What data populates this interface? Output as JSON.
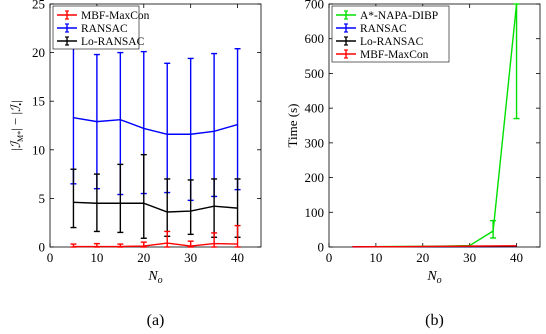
{
  "chart_data": [
    {
      "type": "line",
      "panel_label": "(a)",
      "xlabel": "N_o",
      "ylabel": "|ℐ_M*| − |ℐ_•|",
      "xlim": [
        0,
        45
      ],
      "ylim": [
        0,
        25
      ],
      "xticks": [
        0,
        10,
        20,
        30,
        40
      ],
      "yticks": [
        0,
        5,
        10,
        15,
        20,
        25
      ],
      "grid": false,
      "legend_position": "top-left",
      "x": [
        5,
        10,
        15,
        20,
        25,
        30,
        35,
        40
      ],
      "series": [
        {
          "name": "MBF-MaxCon",
          "color": "#ff0000",
          "values": [
            0.05,
            0.05,
            0.05,
            0.1,
            0.4,
            0.1,
            0.35,
            0.3
          ],
          "err_low": [
            0.05,
            0.05,
            0.05,
            0.1,
            0.4,
            0.1,
            0.35,
            0.3
          ],
          "err_high": [
            0.25,
            0.3,
            0.25,
            0.4,
            1.2,
            0.5,
            1.1,
            1.9
          ]
        },
        {
          "name": "RANSAC",
          "color": "#0000ff",
          "values": [
            13.3,
            12.9,
            13.1,
            12.2,
            11.6,
            11.6,
            11.9,
            12.6
          ],
          "err_low": [
            6.8,
            6.9,
            7.7,
            6.7,
            6.0,
            6.8,
            6.7,
            6.7
          ],
          "err_high": [
            7.2,
            6.9,
            6.9,
            7.9,
            7.3,
            7.8,
            8.0,
            7.8
          ]
        },
        {
          "name": "Lo-RANSAC",
          "color": "#000000",
          "values": [
            4.6,
            4.5,
            4.5,
            4.5,
            3.6,
            3.7,
            4.2,
            4.0
          ],
          "err_low": [
            2.6,
            2.9,
            3.0,
            3.6,
            2.5,
            2.4,
            3.2,
            3.0
          ],
          "err_high": [
            3.4,
            3.0,
            4.0,
            5.0,
            3.4,
            3.2,
            2.8,
            3.0
          ]
        }
      ]
    },
    {
      "type": "line",
      "panel_label": "(b)",
      "xlabel": "N_o",
      "ylabel": "Time (s)",
      "xlim": [
        0,
        45
      ],
      "ylim": [
        0,
        700
      ],
      "xticks": [
        0,
        10,
        20,
        30,
        40
      ],
      "yticks": [
        0,
        100,
        200,
        300,
        400,
        500,
        600,
        700
      ],
      "grid": false,
      "legend_position": "top-left",
      "x": [
        5,
        10,
        15,
        20,
        25,
        30,
        35,
        40
      ],
      "series": [
        {
          "name": "A*-NAPA-DIBP",
          "color": "#00e000",
          "values": [
            0.5,
            1,
            1.5,
            2,
            2.5,
            4,
            46,
            700
          ],
          "err_low": [
            0,
            0,
            0,
            0,
            0,
            0,
            20,
            330
          ],
          "err_high": [
            0,
            0,
            0,
            0,
            0,
            0,
            30,
            0
          ]
        },
        {
          "name": "RANSAC",
          "color": "#0000ff",
          "values": [
            0.3,
            0.4,
            0.5,
            0.6,
            0.8,
            1,
            1.3,
            1.6
          ],
          "err_low": [
            0,
            0,
            0,
            0,
            0,
            0,
            0,
            0
          ],
          "err_high": [
            0,
            0,
            0,
            0,
            0,
            0,
            0,
            0
          ]
        },
        {
          "name": "Lo-RANSAC",
          "color": "#000000",
          "values": [
            0.4,
            0.5,
            0.7,
            0.9,
            1.1,
            1.4,
            1.8,
            2.2
          ],
          "err_low": [
            0,
            0,
            0,
            0,
            0,
            0,
            0,
            0
          ],
          "err_high": [
            0,
            0,
            0,
            0,
            0,
            0,
            0,
            0
          ]
        },
        {
          "name": "MBF-MaxCon",
          "color": "#ff0000",
          "values": [
            0.5,
            0.8,
            1,
            1.5,
            2,
            2.5,
            3,
            3.5
          ],
          "err_low": [
            0,
            0,
            0,
            0,
            0,
            0,
            0,
            0
          ],
          "err_high": [
            0,
            0,
            0,
            0,
            0,
            0,
            0,
            0
          ]
        }
      ]
    }
  ]
}
